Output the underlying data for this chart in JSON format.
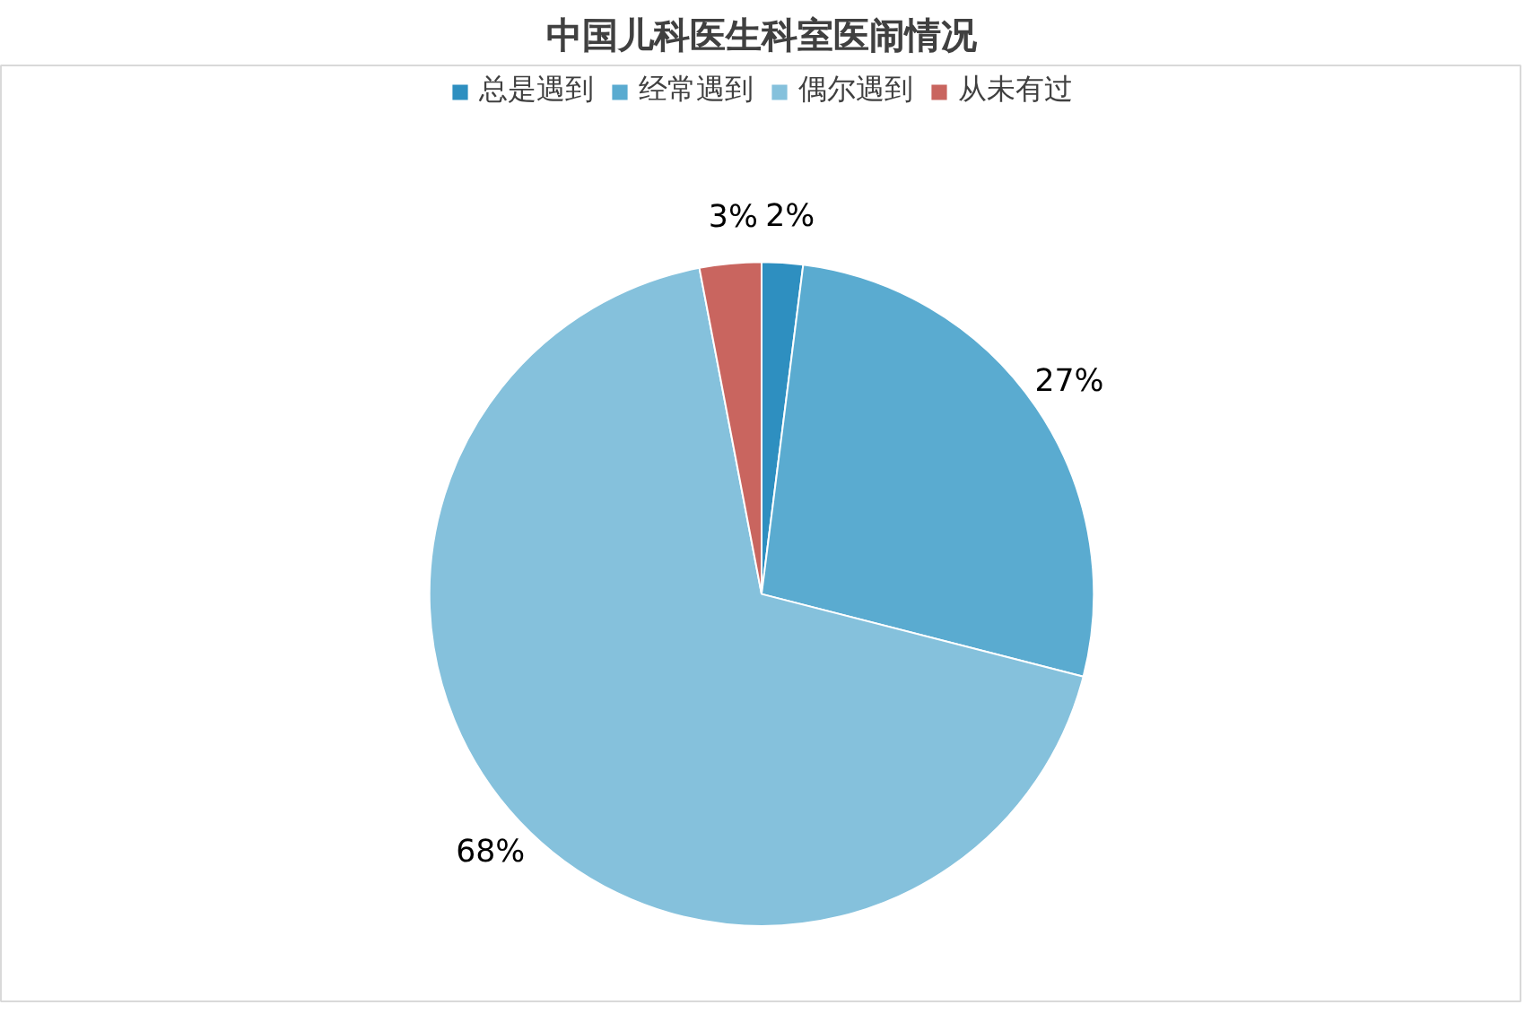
{
  "chart_data": {
    "type": "pie",
    "title": "中国儿科医生科室医闹情况",
    "categories": [
      "总是遇到",
      "经常遇到",
      "偶尔遇到",
      "从未有过"
    ],
    "values": [
      2,
      27,
      68,
      3
    ],
    "value_labels": [
      "2%",
      "27%",
      "68%",
      "3%"
    ],
    "colors": [
      "#2e8fc0",
      "#5aabd0",
      "#85c1dc",
      "#c9655f"
    ],
    "legend": "top"
  }
}
